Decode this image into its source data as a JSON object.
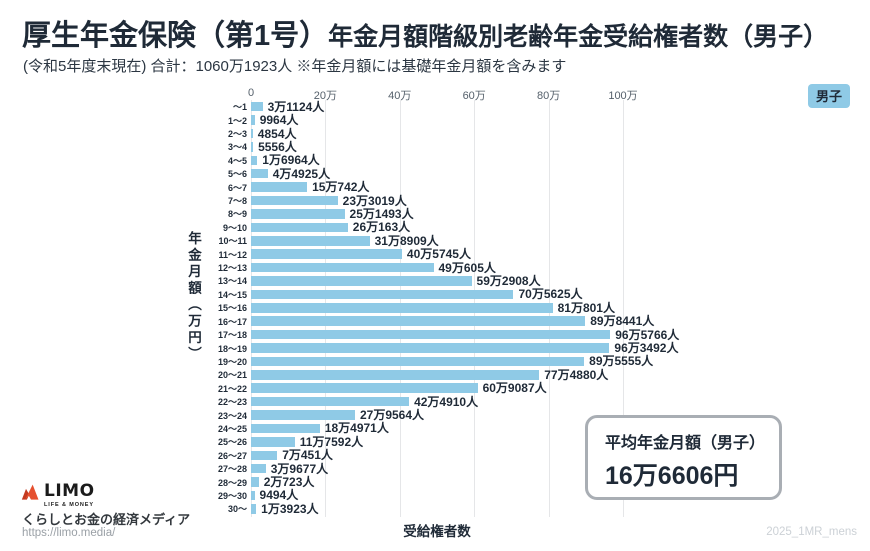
{
  "header": {
    "title_main": "厚生年金保険（第1号）",
    "title_sub": "年金月額階級別老齢年金受給権者数（男子）",
    "subtitle": "(令和5年度末現在) 合計：1060万1923人 ※年金月額には基礎年金月額を含みます"
  },
  "legend": {
    "label": "男子",
    "color": "#8fcae6"
  },
  "chart_data": {
    "type": "bar",
    "orientation": "horizontal",
    "title": "厚生年金保険（第1号）年金月額階級別老齢年金受給権者数（男子）",
    "xlabel": "受給権者数",
    "ylabel": "年金月額（万円）",
    "xlim": [
      0,
      1000000
    ],
    "x_ticks": [
      "0",
      "20万",
      "40万",
      "60万",
      "80万",
      "100万"
    ],
    "x_tick_values": [
      0,
      200000,
      400000,
      600000,
      800000,
      1000000
    ],
    "grid": true,
    "bar_color": "#8fcae6",
    "categories": [
      "～1",
      "1～2",
      "2～3",
      "3～4",
      "4～5",
      "5～6",
      "6～7",
      "7～8",
      "8～9",
      "9～10",
      "10～11",
      "11～12",
      "12～13",
      "13～14",
      "14～15",
      "15～16",
      "16～17",
      "17～18",
      "18～19",
      "19～20",
      "20～21",
      "21～22",
      "22～23",
      "23～24",
      "24～25",
      "25～26",
      "26～27",
      "27～28",
      "28～29",
      "29～30",
      "30～"
    ],
    "values": [
      31124,
      9964,
      4854,
      5556,
      16964,
      44925,
      150742,
      233019,
      251493,
      260163,
      318909,
      405745,
      490605,
      592908,
      705625,
      810801,
      898441,
      965766,
      963492,
      895555,
      774880,
      609087,
      424910,
      279564,
      184971,
      117592,
      70451,
      39677,
      20723,
      9494,
      13923
    ],
    "value_labels": [
      "3万1124人",
      "9964人",
      "4854人",
      "5556人",
      "1万6964人",
      "4万4925人",
      "15万742人",
      "23万3019人",
      "25万1493人",
      "26万163人",
      "31万8909人",
      "40万5745人",
      "49万605人",
      "59万2908人",
      "70万5625人",
      "81万801人",
      "89万8441人",
      "96万5766人",
      "96万3492人",
      "89万5555人",
      "77万4880人",
      "60万9087人",
      "42万4910人",
      "27万9564人",
      "18万4971人",
      "11万7592人",
      "7万451人",
      "3万9677人",
      "2万723人",
      "9494人",
      "1万3923人"
    ]
  },
  "average_box": {
    "title": "平均年金月額（男子）",
    "value": "16万6606円"
  },
  "footer": {
    "logo_text": "LIMO",
    "logo_tagline": "LIFE & MONEY",
    "description": "くらしとお金の経済メディア",
    "url": "https://limo.media/",
    "watermark": "2025_1MR_mens"
  }
}
